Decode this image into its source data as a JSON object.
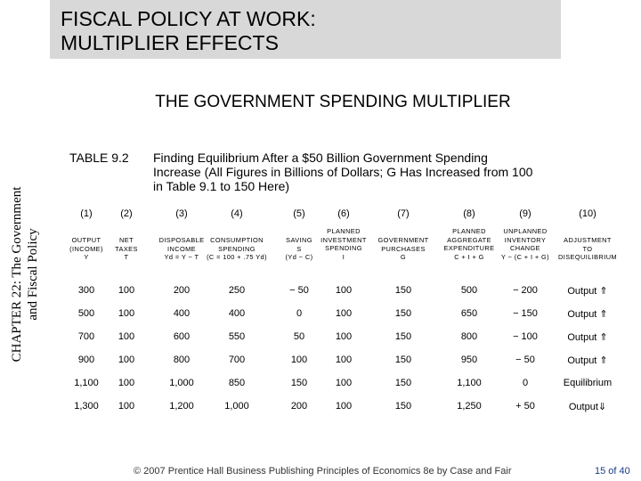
{
  "slide": {
    "title_line1": "FISCAL POLICY AT WORK:",
    "title_line2": "MULTIPLIER EFFECTS",
    "subtitle": "THE GOVERNMENT SPENDING MULTIPLIER",
    "side_line1": "CHAPTER 22:  The Government",
    "side_line2": "and Fiscal Policy"
  },
  "table": {
    "tag": "TABLE 9.2",
    "caption_lines": [
      "Finding Equilibrium After a $50 Billion Government Spending",
      "Increase (All Figures in Billions of Dollars; G Has Increased from 100",
      "in Table 9.1 to 150 Here)"
    ],
    "columns": [
      {
        "num": "(1)",
        "head": [
          "OUTPUT",
          "(INCOME)",
          "Y"
        ]
      },
      {
        "num": "(2)",
        "head": [
          "NET",
          "TAXES",
          "T"
        ]
      },
      {
        "num": "(3)",
        "head": [
          "DISPOSABLE",
          "INCOME",
          "Yd = Y − T"
        ]
      },
      {
        "num": "(4)",
        "head": [
          "CONSUMPTION",
          "SPENDING",
          "(C = 100 + .75 Yd)"
        ]
      },
      {
        "num": "(5)",
        "head": [
          "SAVING",
          "S",
          "(Yd − C)"
        ]
      },
      {
        "num": "(6)",
        "head": [
          "PLANNED",
          "INVESTMENT",
          "SPENDING",
          "I"
        ]
      },
      {
        "num": "(7)",
        "head": [
          "GOVERNMENT",
          "PURCHASES",
          "G"
        ]
      },
      {
        "num": "(8)",
        "head": [
          "PLANNED",
          "AGGREGATE",
          "EXPENDITURE",
          "C + I + G"
        ]
      },
      {
        "num": "(9)",
        "head": [
          "UNPLANNED",
          "INVENTORY",
          "CHANGE",
          "Y − (C + I + G)"
        ]
      },
      {
        "num": "(10)",
        "head": [
          "ADJUSTMENT",
          "TO",
          "DISEQUILIBRIUM"
        ]
      }
    ],
    "rows": [
      [
        "300",
        "100",
        "200",
        "250",
        "− 50",
        "100",
        "150",
        "500",
        "− 200",
        "Output ⇑"
      ],
      [
        "500",
        "100",
        "400",
        "400",
        "0",
        "100",
        "150",
        "650",
        "− 150",
        "Output ⇑"
      ],
      [
        "700",
        "100",
        "600",
        "550",
        "50",
        "100",
        "150",
        "800",
        "− 100",
        "Output ⇑"
      ],
      [
        "900",
        "100",
        "800",
        "700",
        "100",
        "100",
        "150",
        "950",
        "− 50",
        "Output ⇑"
      ],
      [
        "1,100",
        "100",
        "1,000",
        "850",
        "150",
        "100",
        "150",
        "1,100",
        "0",
        "Equilibrium"
      ],
      [
        "1,300",
        "100",
        "1,200",
        "1,000",
        "200",
        "100",
        "150",
        "1,250",
        "+ 50",
        "Output⇓"
      ]
    ]
  },
  "footer": {
    "text": "© 2007 Prentice Hall Business Publishing   Principles of Economics 8e by Case and Fair",
    "page": "15 of 40"
  }
}
